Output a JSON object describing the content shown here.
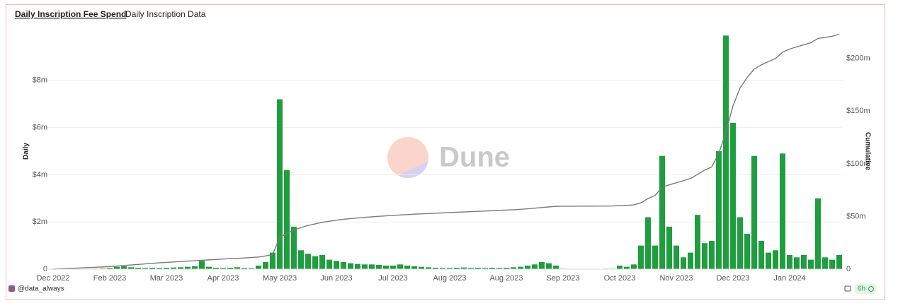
{
  "chart_data": {
    "type": "bar",
    "tabs": [
      "Daily Inscription Fee Spend",
      "Daily Inscription Data"
    ],
    "y_label": "Daily",
    "y2_label": "Cumulative",
    "watermark": "Dune",
    "grid": true,
    "categories": [
      "Dec 2022",
      null,
      null,
      null,
      null,
      null,
      null,
      null,
      "Feb 2023",
      null,
      null,
      null,
      null,
      null,
      null,
      null,
      "Mar 2023",
      null,
      null,
      null,
      null,
      null,
      null,
      null,
      "Apr 2023",
      null,
      null,
      null,
      null,
      null,
      null,
      null,
      "May 2023",
      null,
      null,
      null,
      null,
      null,
      null,
      null,
      "Jun 2023",
      null,
      null,
      null,
      null,
      null,
      null,
      null,
      "Jul 2023",
      null,
      null,
      null,
      null,
      null,
      null,
      null,
      "Aug 2023",
      null,
      null,
      null,
      null,
      null,
      null,
      null,
      "Aug 2023",
      null,
      null,
      null,
      null,
      null,
      null,
      null,
      "Sep 2023",
      null,
      null,
      null,
      null,
      null,
      null,
      null,
      "Oct 2023",
      null,
      null,
      null,
      null,
      null,
      null,
      null,
      "Nov 2023",
      null,
      null,
      null,
      null,
      null,
      null,
      null,
      "Dec 2023",
      null,
      null,
      null,
      null,
      null,
      null,
      null,
      "Jan 2024",
      null,
      null,
      null,
      null,
      null,
      null,
      null
    ],
    "series": [
      {
        "type": "bar",
        "color": "#1e9e3e",
        "values": [
          0,
          0,
          0,
          0,
          0,
          0.01,
          0.02,
          0.03,
          0.05,
          0.1,
          0.12,
          0.08,
          0.06,
          0.05,
          0.06,
          0.05,
          0.06,
          0.07,
          0.08,
          0.1,
          0.12,
          0.35,
          0.1,
          0.06,
          0.05,
          0.06,
          0.08,
          0.05,
          0.04,
          0.15,
          0.3,
          0.7,
          7.2,
          4.2,
          1.8,
          0.8,
          0.65,
          0.55,
          0.6,
          0.4,
          0.35,
          0.3,
          0.25,
          0.22,
          0.2,
          0.2,
          0.18,
          0.15,
          0.15,
          0.2,
          0.15,
          0.12,
          0.1,
          0.08,
          0.06,
          0.05,
          0.05,
          0.06,
          0.07,
          0.05,
          0.06,
          0.05,
          0.06,
          0.05,
          0.06,
          0.08,
          0.1,
          0.15,
          0.2,
          0.3,
          0.25,
          0.15,
          0.02,
          0.01,
          0.01,
          0.01,
          0.01,
          0.01,
          0.02,
          0.02,
          0.15,
          0.1,
          0.2,
          1.0,
          2.2,
          1.0,
          4.8,
          1.8,
          1.0,
          0.5,
          0.7,
          2.3,
          1.1,
          1.2,
          5.0,
          9.9,
          6.2,
          2.2,
          1.5,
          4.8,
          1.2,
          0.7,
          0.8,
          4.9,
          0.6,
          0.5,
          0.6,
          0.4,
          3.0,
          0.5,
          0.4,
          0.6
        ]
      },
      {
        "type": "line",
        "axis": "y2",
        "color": "#7a7a7a",
        "values": [
          0,
          0.3,
          0.6,
          0.9,
          1.2,
          1.5,
          1.8,
          2.1,
          2.5,
          3,
          3.5,
          4,
          4.5,
          5,
          5.5,
          6,
          6.4,
          6.8,
          7.2,
          7.6,
          8,
          8.4,
          8.8,
          9.2,
          9.6,
          10,
          10.3,
          10.6,
          11,
          11.5,
          12.5,
          14,
          30,
          34,
          37,
          39.5,
          41.5,
          43,
          44.5,
          45.5,
          46.5,
          47.3,
          48,
          48.6,
          49.2,
          49.7,
          50.2,
          50.6,
          51,
          51.4,
          51.8,
          52.2,
          52.5,
          52.8,
          53.1,
          53.4,
          53.7,
          54,
          54.3,
          54.6,
          54.9,
          55.2,
          55.5,
          55.8,
          56.1,
          56.4,
          56.8,
          57.3,
          57.9,
          58.5,
          59.1,
          59.6,
          59.7,
          59.7,
          59.8,
          59.8,
          59.8,
          59.9,
          59.9,
          60,
          60.3,
          60.6,
          61,
          63,
          67,
          70,
          78,
          80,
          82,
          84,
          86,
          90,
          94,
          97,
          110,
          130,
          155,
          172,
          182,
          190,
          194,
          197,
          200,
          206,
          209,
          211,
          213,
          215,
          219,
          220,
          221,
          223
        ]
      }
    ],
    "ylim": [
      0,
      10
    ],
    "yticks": [
      0,
      {
        "value": 2,
        "label": "$2m"
      },
      {
        "value": 4,
        "label": "$4m"
      },
      {
        "value": 6,
        "label": "$6m"
      },
      {
        "value": 8,
        "label": "$8m"
      }
    ],
    "y2lim": [
      0,
      224
    ],
    "y2ticks": [
      0,
      {
        "value": 50,
        "label": "$50m"
      },
      {
        "value": 100,
        "label": "$100m"
      },
      {
        "value": 150,
        "label": "$150m"
      },
      {
        "value": 200,
        "label": "$200m"
      }
    ]
  },
  "footer": {
    "author": "@data_always",
    "refresh": "6h"
  }
}
